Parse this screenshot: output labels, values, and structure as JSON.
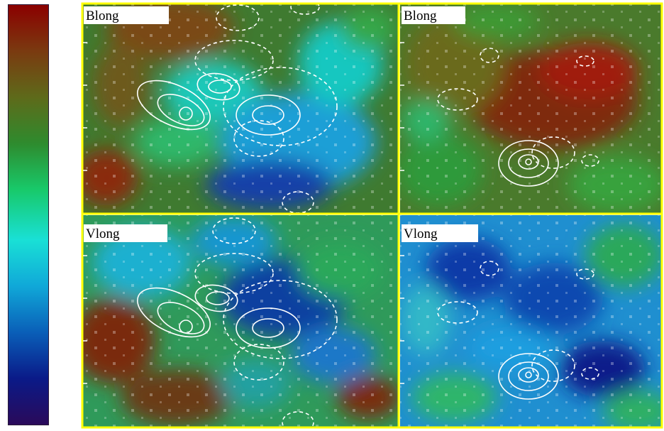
{
  "panels": [
    {
      "label": "Blong"
    },
    {
      "label": "Blong"
    },
    {
      "label": "Vlong"
    },
    {
      "label": "Vlong"
    }
  ],
  "colors": {
    "frame": "#ffff00",
    "contour": "#ffffff",
    "colorbar_stops": [
      "#8b0000",
      "#7a3a10",
      "#5e6a1a",
      "#2e8b2e",
      "#18c96a",
      "#19e0d6",
      "#10a8d8",
      "#0a5fb8",
      "#0a1a88",
      "#2a0a5a"
    ]
  },
  "icons": [
    "colorbar",
    "magnetogram-map",
    "velocity-map",
    "contour-overlay"
  ]
}
